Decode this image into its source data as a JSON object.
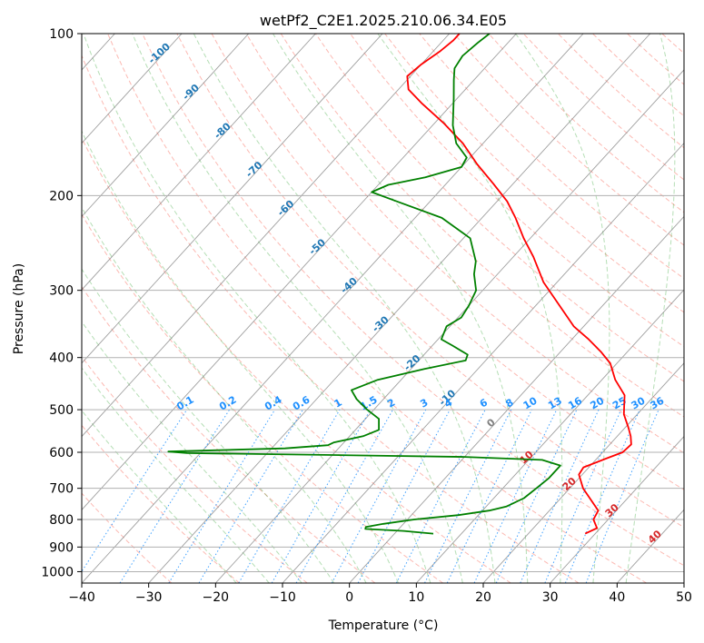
{
  "chart_data": {
    "type": "line",
    "title": "wetPf2_C2E1.2025.210.06.34.E05",
    "xlabel": "Temperature (°C)",
    "ylabel": "Pressure (hPa)",
    "xlim": [
      -40,
      50
    ],
    "ylim": [
      1050,
      100
    ],
    "y_scale": "log",
    "skew": true,
    "grid": true,
    "x_ticks": [
      -40,
      -30,
      -20,
      -10,
      0,
      10,
      20,
      30,
      40,
      50
    ],
    "y_ticks": [
      100,
      200,
      300,
      400,
      500,
      600,
      700,
      800,
      900,
      1000
    ],
    "colors": {
      "temperature": "#ff0000",
      "dewpoint": "#008000",
      "dry_adiabat": "#fa8072",
      "moist_adiabat": "#2ca02c",
      "mixing_ratio": "#1f77b4",
      "isotherm": "#808080",
      "isotherm_label": "#d62728",
      "isotherm_label_neg": "#1f77b4",
      "isotherm_zero": "#808080"
    },
    "series": [
      {
        "key": "temperature",
        "points": [
          [
            850,
            28.5
          ],
          [
            830,
            29.5
          ],
          [
            800,
            27.8
          ],
          [
            770,
            27.3
          ],
          [
            700,
            22.0
          ],
          [
            660,
            19.5
          ],
          [
            640,
            19.2
          ],
          [
            615,
            21.5
          ],
          [
            600,
            23.0
          ],
          [
            580,
            23.2
          ],
          [
            560,
            22.0
          ],
          [
            540,
            20.5
          ],
          [
            510,
            18.0
          ],
          [
            470,
            15.5
          ],
          [
            440,
            12.0
          ],
          [
            410,
            9.0
          ],
          [
            390,
            6.0
          ],
          [
            370,
            2.5
          ],
          [
            350,
            -1.5
          ],
          [
            320,
            -6.5
          ],
          [
            290,
            -12.0
          ],
          [
            260,
            -17.0
          ],
          [
            240,
            -21.0
          ],
          [
            220,
            -25.0
          ],
          [
            205,
            -28.5
          ],
          [
            190,
            -33.0
          ],
          [
            175,
            -38.0
          ],
          [
            160,
            -43.0
          ],
          [
            147,
            -48.5
          ],
          [
            135,
            -54.5
          ],
          [
            127,
            -58.5
          ],
          [
            120,
            -60.5
          ],
          [
            114,
            -60.0
          ],
          [
            108,
            -59.0
          ],
          [
            103,
            -58.5
          ],
          [
            100,
            -58.5
          ]
        ]
      },
      {
        "key": "dewpoint",
        "points": [
          [
            850,
            5.8
          ],
          [
            840,
            1.0
          ],
          [
            833,
            -5.0
          ],
          [
            826,
            -5.2
          ],
          [
            815,
            -3.0
          ],
          [
            800,
            1.0
          ],
          [
            785,
            7.0
          ],
          [
            770,
            11.0
          ],
          [
            757,
            13.0
          ],
          [
            730,
            14.5
          ],
          [
            700,
            15.0
          ],
          [
            670,
            15.5
          ],
          [
            635,
            15.5
          ],
          [
            620,
            12.0
          ],
          [
            612,
            0.0
          ],
          [
            607,
            -20.0
          ],
          [
            602,
            -42.0
          ],
          [
            598,
            -45.0
          ],
          [
            590,
            -28.0
          ],
          [
            582,
            -22.0
          ],
          [
            575,
            -21.5
          ],
          [
            560,
            -18.0
          ],
          [
            545,
            -16.5
          ],
          [
            520,
            -18.0
          ],
          [
            500,
            -21.0
          ],
          [
            478,
            -24.0
          ],
          [
            460,
            -26.0
          ],
          [
            440,
            -23.5
          ],
          [
            420,
            -18.0
          ],
          [
            405,
            -13.0
          ],
          [
            395,
            -13.5
          ],
          [
            380,
            -17.0
          ],
          [
            370,
            -19.5
          ],
          [
            350,
            -20.5
          ],
          [
            337,
            -19.5
          ],
          [
            320,
            -20.0
          ],
          [
            300,
            -21.0
          ],
          [
            280,
            -23.5
          ],
          [
            265,
            -25.0
          ],
          [
            240,
            -29.0
          ],
          [
            220,
            -36.0
          ],
          [
            205,
            -45.0
          ],
          [
            197,
            -50.0
          ],
          [
            191,
            -48.5
          ],
          [
            185,
            -44.0
          ],
          [
            177,
            -40.0
          ],
          [
            170,
            -40.5
          ],
          [
            160,
            -44.0
          ],
          [
            148,
            -47.0
          ],
          [
            132,
            -50.5
          ],
          [
            122,
            -53.0
          ],
          [
            116,
            -54.5
          ],
          [
            110,
            -55.0
          ],
          [
            104,
            -54.5
          ],
          [
            100,
            -54.0
          ]
        ]
      }
    ],
    "isotherm_labels": [
      "-100",
      "-90",
      "-80",
      "-70",
      "-60",
      "-50",
      "-40",
      "-30",
      "-20",
      "-10",
      "0",
      "10",
      "20",
      "30",
      "40"
    ],
    "mixing_ratio_labels": [
      "0.1",
      "0.2",
      "0.4",
      "0.6",
      "1",
      "1.5",
      "2",
      "3",
      "4",
      "6",
      "8",
      "10",
      "13",
      "16",
      "20",
      "25",
      "30",
      "36"
    ]
  }
}
